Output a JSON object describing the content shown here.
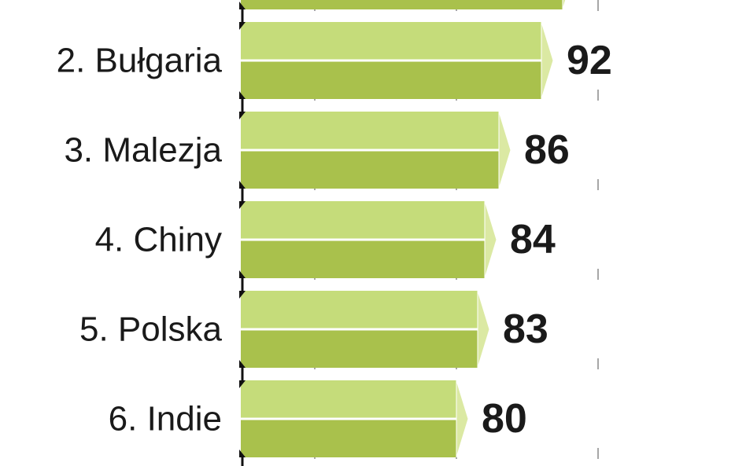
{
  "chart_data": {
    "type": "bar",
    "orientation": "horizontal",
    "categories": [
      null,
      "2. Bułgaria",
      "3. Malezja",
      "4. Chiny",
      "5. Polska",
      "6. Indie"
    ],
    "values": [
      95,
      92,
      86,
      84,
      83,
      80
    ],
    "color": "#c5dc7a",
    "xlim": [
      50,
      120
    ],
    "xticks": [
      60,
      80,
      100
    ],
    "grid": true
  }
}
